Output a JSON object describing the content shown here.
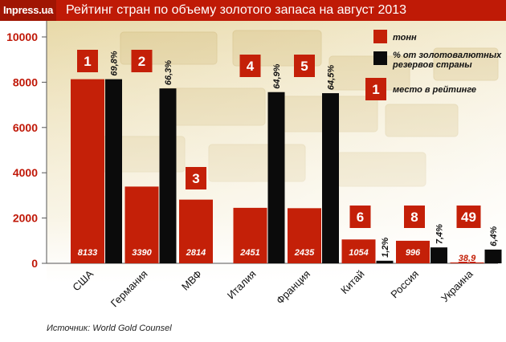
{
  "header": {
    "brand": "Inpress.ua",
    "title": "Рейтинг стран по объему золотого запаса на август 2013"
  },
  "colors": {
    "tons": "#c42008",
    "pct": "#0b0b0b",
    "rank": "#c42008",
    "accent": "#bf1a06"
  },
  "legend": {
    "tons": "тонн",
    "pct_line1": "% от золотовалютных",
    "pct_line2": "резервов страны",
    "rank": "место в рейтинге",
    "rank_sample": "1"
  },
  "source": "Источник: World Gold Counsel",
  "chart_data": {
    "type": "bar",
    "title": "Рейтинг стран по объему золотого запаса на август 2013",
    "categories": [
      "США",
      "Германия",
      "МВФ",
      "Италия",
      "Франция",
      "Китай",
      "Россия",
      "Украина"
    ],
    "ylim": [
      0,
      10000
    ],
    "yticks": [
      "0",
      "2000",
      "4000",
      "6000",
      "8000",
      "10000"
    ],
    "series": [
      {
        "name": "тонн",
        "values": [
          8133,
          3390,
          2814,
          2451,
          2435,
          1054,
          996,
          38.9
        ],
        "labels": [
          "8133",
          "3390",
          "2814",
          "2451",
          "2435",
          "1054",
          "996",
          "38,9"
        ]
      },
      {
        "name": "% от золотовалютных резервов страны",
        "values": [
          69.8,
          66.3,
          null,
          64.9,
          64.5,
          1.2,
          7.4,
          6.4
        ],
        "labels": [
          "69,8%",
          "66,3%",
          "",
          "64,9%",
          "64,5%",
          "1,2%",
          "7,4%",
          "6,4%"
        ]
      }
    ],
    "ranks": [
      "1",
      "2",
      "3",
      "4",
      "5",
      "6",
      "8",
      "49"
    ]
  }
}
